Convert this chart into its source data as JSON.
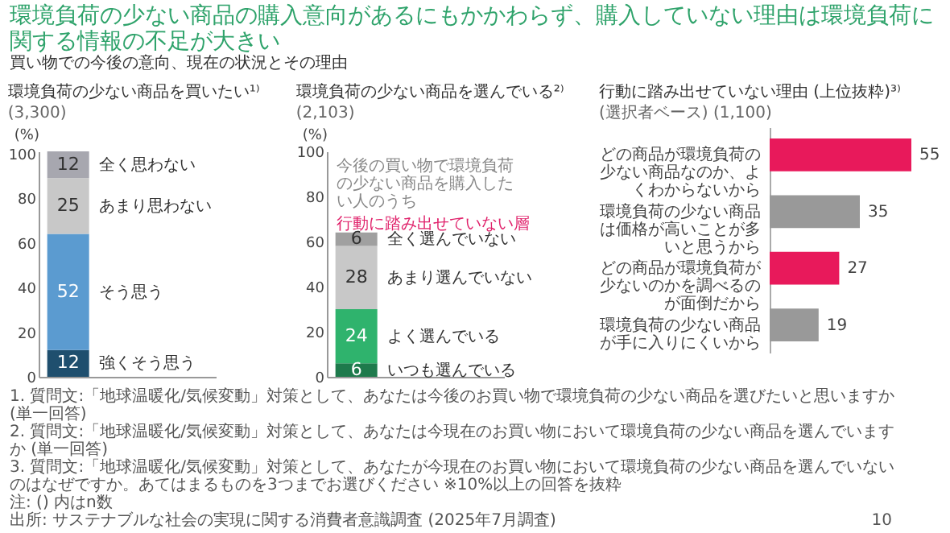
{
  "chart_data": [
    {
      "type": "other",
      "title": "環境負荷の少ない商品の購入意向があるにもかかわらず、購入していない理由は環境負荷に関する情報の不足が大きい",
      "subtitle": "買い物での今後の意向、現在の状況とその理由"
    },
    {
      "type": "bar",
      "title": "環境負荷の少ない商品を買いたい¹⁾",
      "subtitle": "(3,300)",
      "stacked": true,
      "categories": [
        null
      ],
      "ylabel": "(%)",
      "ylim": [
        0,
        101
      ],
      "yticks": [
        0,
        20,
        40,
        60,
        80,
        100
      ],
      "data_labels": true,
      "series": [
        {
          "name": "強くそう思う",
          "color": "#1f4f6e",
          "values": [
            12
          ]
        },
        {
          "name": "そう思う",
          "color": "#5b9bd0",
          "values": [
            52
          ]
        },
        {
          "name": "あまり思わない",
          "color": "#c8c8c8",
          "values": [
            25
          ]
        },
        {
          "name": "全く思わない",
          "color": "#a7a7af",
          "values": [
            12
          ]
        }
      ]
    },
    {
      "type": "bar",
      "title": "環境負荷の少ない商品を選んでいる²⁾",
      "subtitle": "(2,103)",
      "stacked": true,
      "categories": [
        null
      ],
      "ylabel": "(%)",
      "ylim": [
        0,
        100
      ],
      "yticks": [
        0,
        20,
        40,
        60,
        80,
        100
      ],
      "data_labels": true,
      "annotations": [
        "今後の買い物で環境負荷の少ない商品を購入したい人のうち",
        "行動に踏み出せていない層"
      ],
      "series": [
        {
          "name": "いつも選んでいる",
          "color": "#1e7a4c",
          "values": [
            6
          ]
        },
        {
          "name": "よく選んでいる",
          "color": "#2fb36d",
          "values": [
            24
          ]
        },
        {
          "name": "あまり選んでいない",
          "color": "#c8c8c8",
          "values": [
            28
          ]
        },
        {
          "name": "全く選んでいない",
          "color": "#a0a0a0",
          "values": [
            6
          ]
        }
      ]
    },
    {
      "type": "bar",
      "orientation": "horizontal",
      "title": "行動に踏み出せていない理由 (上位抜粋)³⁾",
      "subtitle": "(1,100)",
      "annotations": [
        "(選択者ベース)"
      ],
      "data_labels": true,
      "categories": [
        "どの商品が環境負荷の少ない商品なのか、よくわからないから",
        "環境負荷の少ない商品は価格が高いことが多いと思うから",
        "どの商品が環境負荷が少ないのかを調べるのが面倒だから",
        "環境負荷の少ない商品が手に入りにくいから"
      ],
      "values": [
        55,
        35,
        27,
        19
      ],
      "colors": [
        "#e8195b",
        "#999999",
        "#e8195b",
        "#999999"
      ]
    },
    {
      "type": "other",
      "annotations": [
        "1. 質問文:「地球温暖化/気候変動」対策として、あなたは今後のお買い物で環境負荷の少ない商品を選びたいと思いますか (単一回答)",
        "2. 質問文:「地球温暖化/気候変動」対策として、あなたは今現在のお買い物において環境負荷の少ない商品を選んでいますか (単一回答)",
        "3. 質問文:「地球温暖化/気候変動」対策として、あなたが今現在のお買い物において環境負荷の少ない商品を選んでいないのはなぜですか。あてはまるものを3つまでお選びください ※10%以上の回答を抜粋",
        "注: () 内はn数",
        "出所: サステナブルな社会の実現に関する消費者意識調査 (2025年7月調査)",
        "10"
      ]
    }
  ]
}
